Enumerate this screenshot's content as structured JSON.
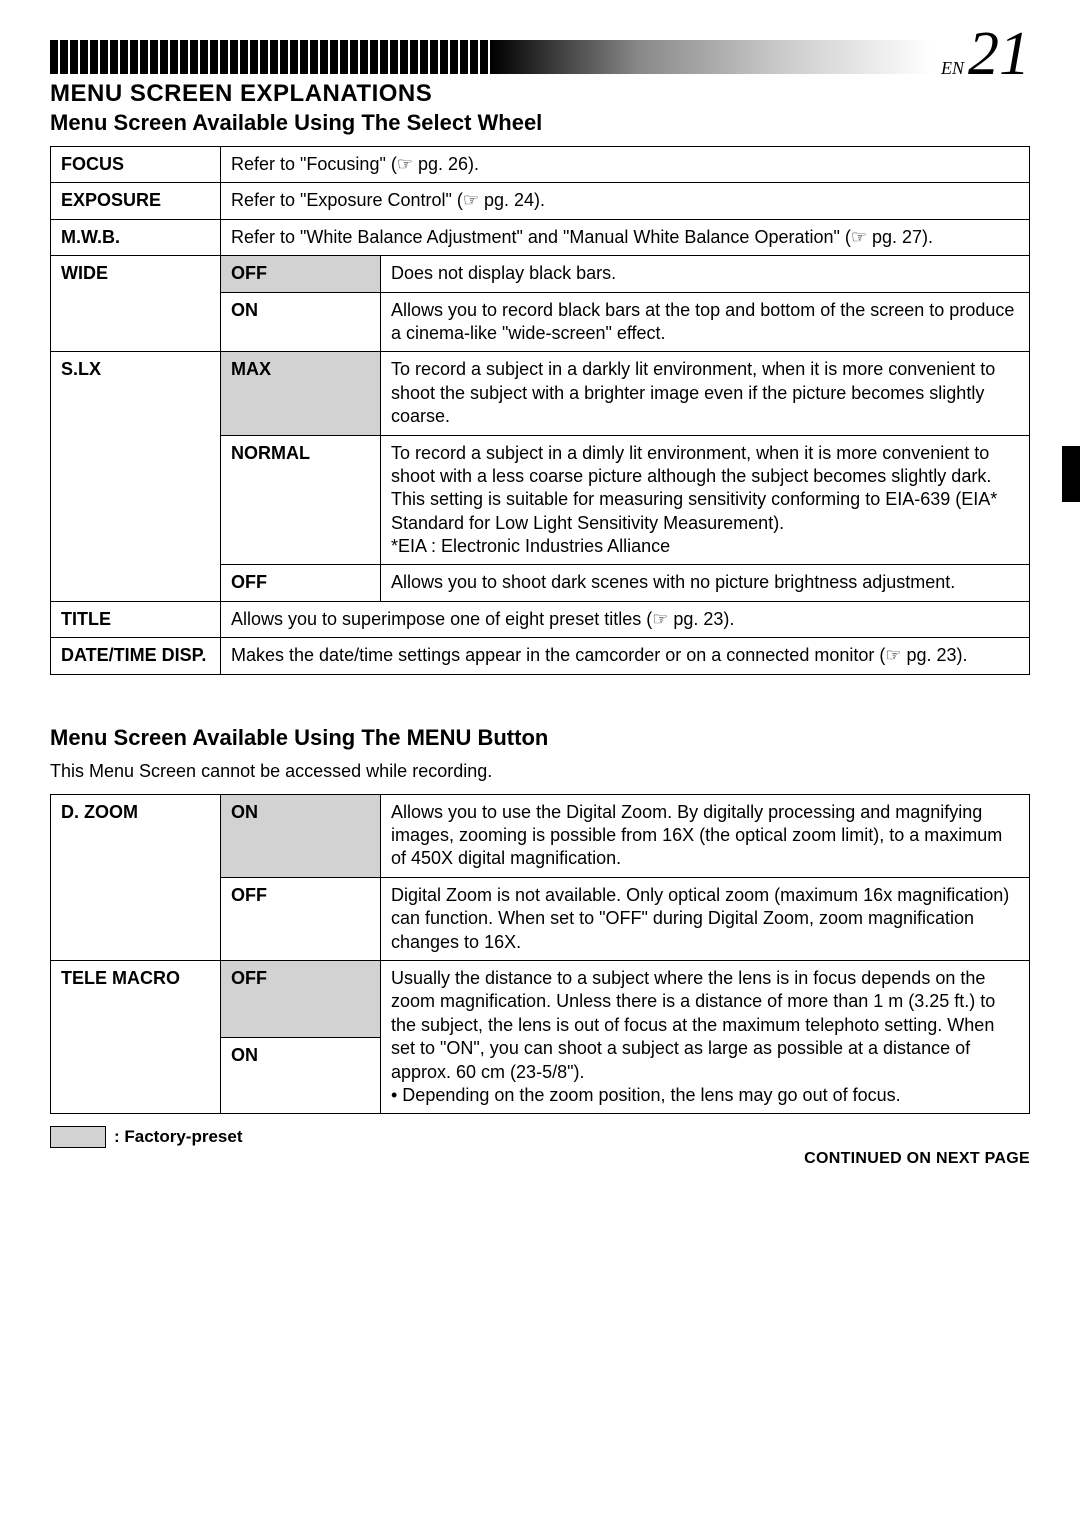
{
  "page": {
    "lang": "EN",
    "number": "21"
  },
  "title": "MENU SCREEN EXPLANATIONS",
  "section1": {
    "subtitle": "Menu Screen Available Using The Select Wheel",
    "rows": [
      {
        "name": "FOCUS",
        "span": true,
        "desc": "Refer to \"Focusing\" (☞ pg. 26)."
      },
      {
        "name": "EXPOSURE",
        "span": true,
        "desc": "Refer to \"Exposure Control\" (☞ pg. 24)."
      },
      {
        "name": "M.W.B.",
        "span": true,
        "desc": "Refer to \"White Balance Adjustment\" and \"Manual White Balance Operation\" (☞ pg. 27)."
      }
    ],
    "wide": {
      "name": "WIDE",
      "opts": [
        {
          "label": "OFF",
          "preset": true,
          "desc": "Does not display black bars."
        },
        {
          "label": "ON",
          "preset": false,
          "desc": "Allows you to record black bars at the top and bottom of the screen to produce a cinema-like \"wide-screen\" effect."
        }
      ]
    },
    "slx": {
      "name": "S.LX",
      "opts": [
        {
          "label": "MAX",
          "preset": true,
          "desc": "To record a subject in a darkly lit environment, when it is more convenient to shoot the subject with a brighter image even if the picture becomes slightly coarse."
        },
        {
          "label": "NORMAL",
          "preset": false,
          "desc": "To record a subject in a dimly lit environment, when it is more convenient to shoot with a less coarse picture although the subject becomes slightly dark. This setting is suitable for measuring sensitivity conforming to EIA-639 (EIA* Standard for Low Light Sensitivity Measurement).\n*EIA : Electronic Industries Alliance"
        },
        {
          "label": "OFF",
          "preset": false,
          "desc": "Allows you to shoot dark scenes with no picture brightness adjustment."
        }
      ]
    },
    "title_row": {
      "name": "TITLE",
      "desc": "Allows you to superimpose one of eight preset titles (☞ pg. 23)."
    },
    "datetime": {
      "name": "DATE/TIME DISP.",
      "desc": "Makes the date/time settings appear in the camcorder or on a connected monitor (☞ pg. 23)."
    }
  },
  "section2": {
    "subtitle": "Menu Screen Available Using The MENU Button",
    "note": "This Menu Screen cannot be accessed while recording.",
    "dzoom": {
      "name": "D. ZOOM",
      "opts": [
        {
          "label": "ON",
          "preset": true,
          "desc": "Allows you to use the Digital Zoom. By digitally processing and magnifying images, zooming is possible from 16X (the optical zoom limit), to a maximum of 450X digital magnification."
        },
        {
          "label": "OFF",
          "preset": false,
          "desc": "Digital Zoom is not available. Only optical zoom (maximum 16x magnification) can function. When set to \"OFF\" during Digital Zoom, zoom magnification changes to 16X."
        }
      ]
    },
    "telemacro": {
      "name": "TELE MACRO",
      "opts": [
        {
          "label": "OFF",
          "preset": true
        },
        {
          "label": "ON",
          "preset": false
        }
      ],
      "desc": "Usually the distance to a subject where the lens is in focus depends on the zoom magnification. Unless there is a distance of more than 1 m (3.25 ft.) to the subject, the lens is out of focus at the maximum telephoto setting. When set to \"ON\", you can shoot a subject as large as possible at a distance of approx. 60 cm (23-5/8\").\n• Depending on the zoom position, the lens may go out of focus."
    }
  },
  "legend": ": Factory-preset",
  "footer": "CONTINUED ON NEXT PAGE"
}
